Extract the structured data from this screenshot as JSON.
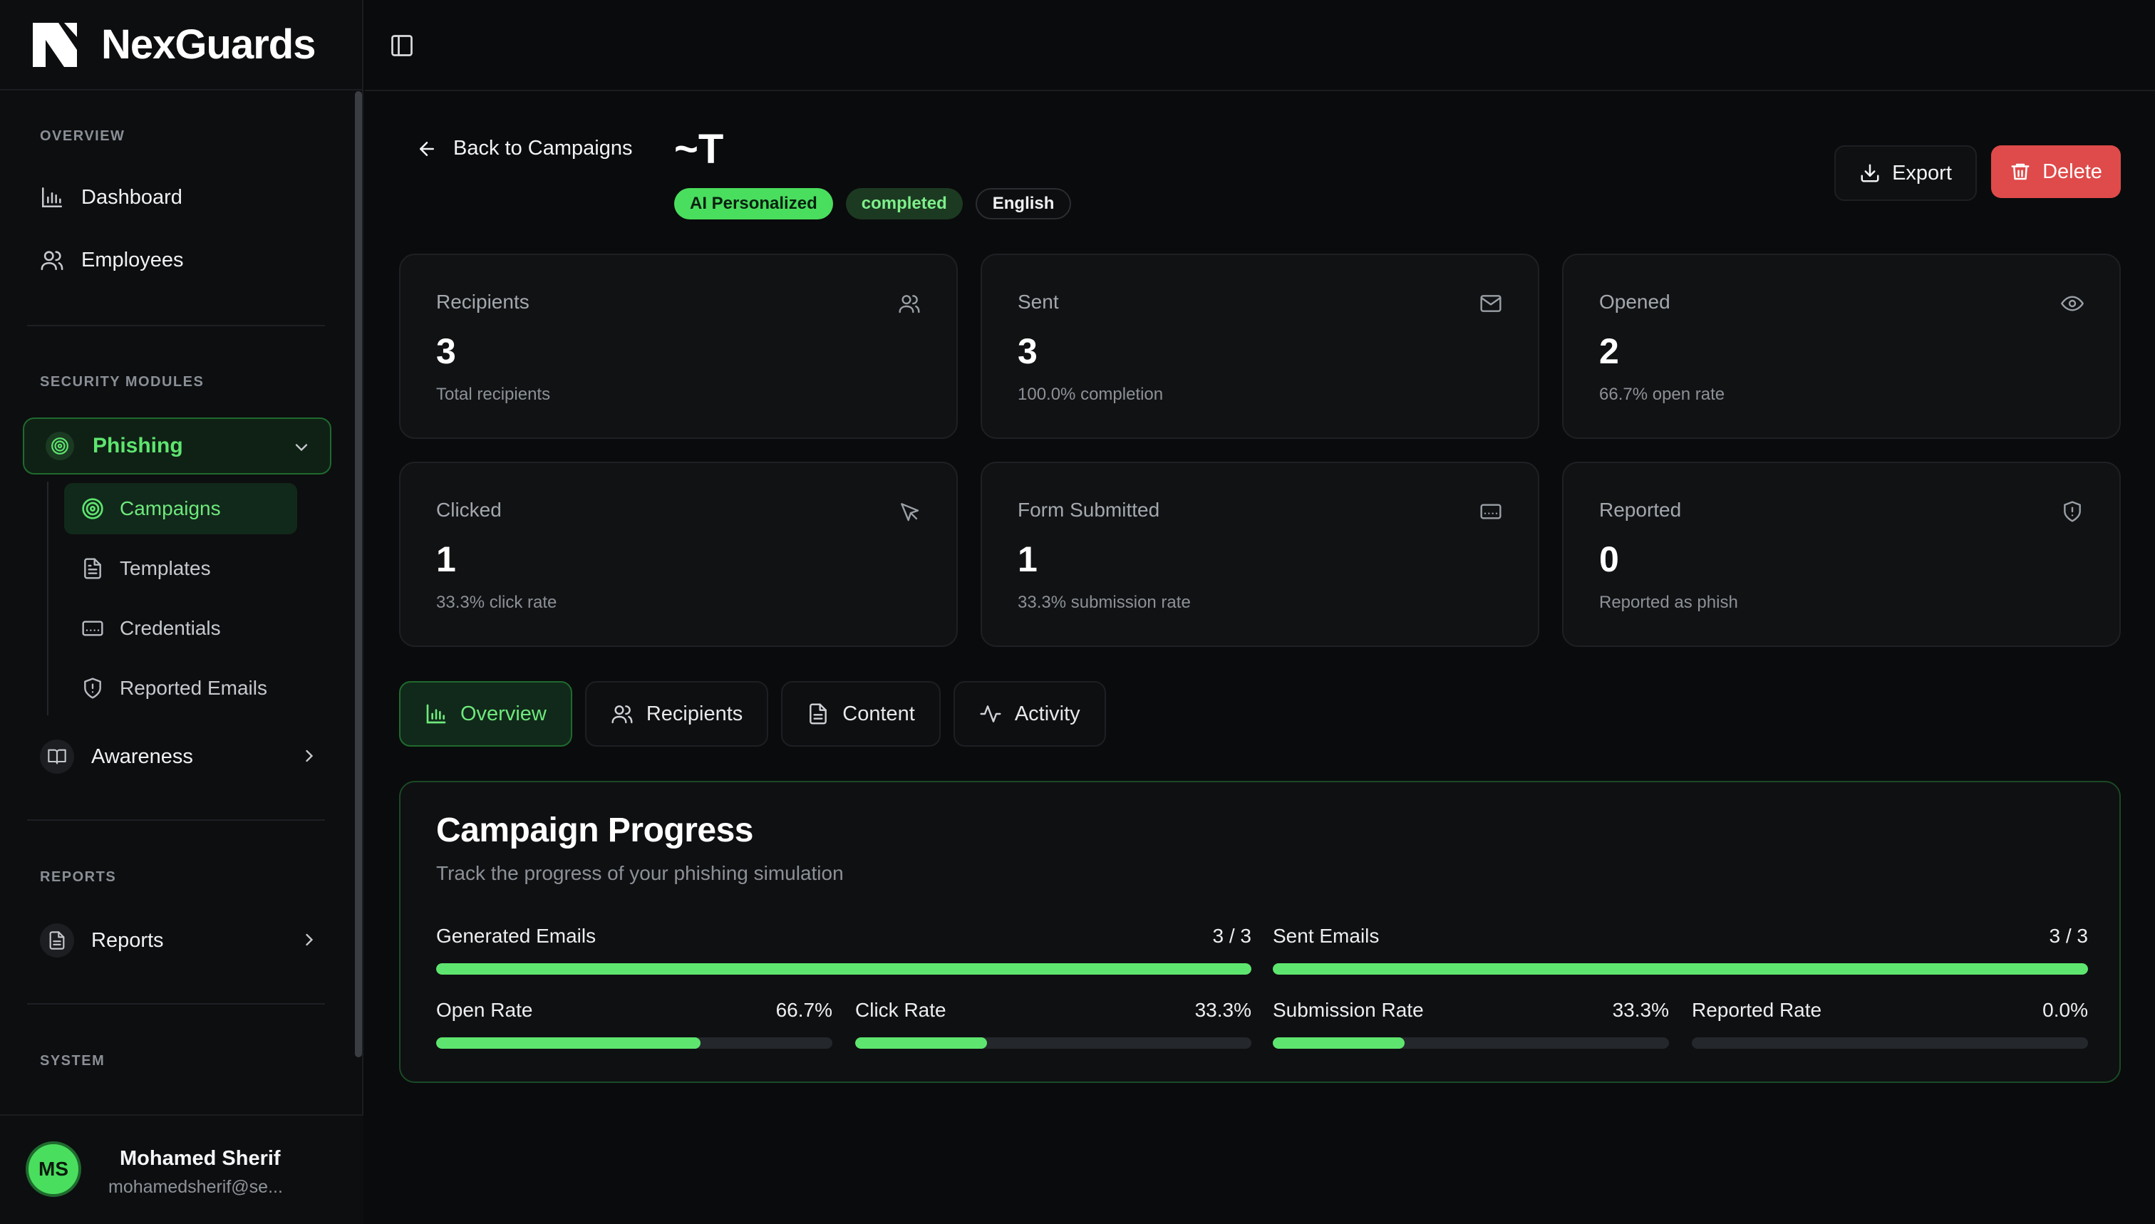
{
  "brand": {
    "name": "NexGuards"
  },
  "sidebar": {
    "sections": {
      "overview": "OVERVIEW",
      "security": "SECURITY MODULES",
      "reports": "REPORTS",
      "system": "SYSTEM"
    },
    "overview_items": [
      {
        "label": "Dashboard",
        "icon": "bar-chart-icon"
      },
      {
        "label": "Employees",
        "icon": "users-icon"
      }
    ],
    "phishing": {
      "label": "Phishing",
      "items": [
        {
          "label": "Campaigns",
          "icon": "target-icon",
          "active": true
        },
        {
          "label": "Templates",
          "icon": "file-icon"
        },
        {
          "label": "Credentials",
          "icon": "credit-card-icon"
        },
        {
          "label": "Reported Emails",
          "icon": "shield-icon"
        }
      ]
    },
    "awareness": {
      "label": "Awareness"
    },
    "reports": {
      "label": "Reports"
    }
  },
  "user": {
    "initials": "MS",
    "name": "Mohamed Sherif",
    "email": "mohamedsherif@se..."
  },
  "header": {
    "back_label": "Back to Campaigns",
    "title": "~T",
    "badges": [
      "AI Personalized",
      "completed",
      "English"
    ],
    "export_label": "Export",
    "delete_label": "Delete"
  },
  "stats": [
    {
      "label": "Recipients",
      "value": "3",
      "sub": "Total recipients",
      "icon": "users-icon"
    },
    {
      "label": "Sent",
      "value": "3",
      "sub": "100.0% completion",
      "icon": "mail-icon"
    },
    {
      "label": "Opened",
      "value": "2",
      "sub": "66.7% open rate",
      "icon": "eye-icon"
    },
    {
      "label": "Clicked",
      "value": "1",
      "sub": "33.3% click rate",
      "icon": "cursor-icon"
    },
    {
      "label": "Form Submitted",
      "value": "1",
      "sub": "33.3% submission rate",
      "icon": "form-icon"
    },
    {
      "label": "Reported",
      "value": "0",
      "sub": "Reported as phish",
      "icon": "shield-icon"
    }
  ],
  "tabs": [
    {
      "label": "Overview",
      "active": true
    },
    {
      "label": "Recipients"
    },
    {
      "label": "Content"
    },
    {
      "label": "Activity"
    }
  ],
  "progress": {
    "title": "Campaign Progress",
    "subtitle": "Track the progress of your phishing simulation",
    "metrics": [
      {
        "label": "Generated Emails",
        "value": "3 / 3",
        "fraction": 1.0
      },
      {
        "label": "Sent Emails",
        "value": "3 / 3",
        "fraction": 1.0
      },
      {
        "label": "Open Rate",
        "value": "66.7%",
        "fraction": 0.667
      },
      {
        "label": "Click Rate",
        "value": "33.3%",
        "fraction": 0.333
      },
      {
        "label": "Submission Rate",
        "value": "33.3%",
        "fraction": 0.333
      },
      {
        "label": "Reported Rate",
        "value": "0.0%",
        "fraction": 0.0
      }
    ]
  },
  "colors": {
    "accent": "#5ee56f",
    "danger": "#df4a4a",
    "background": "#0a0b0c"
  }
}
